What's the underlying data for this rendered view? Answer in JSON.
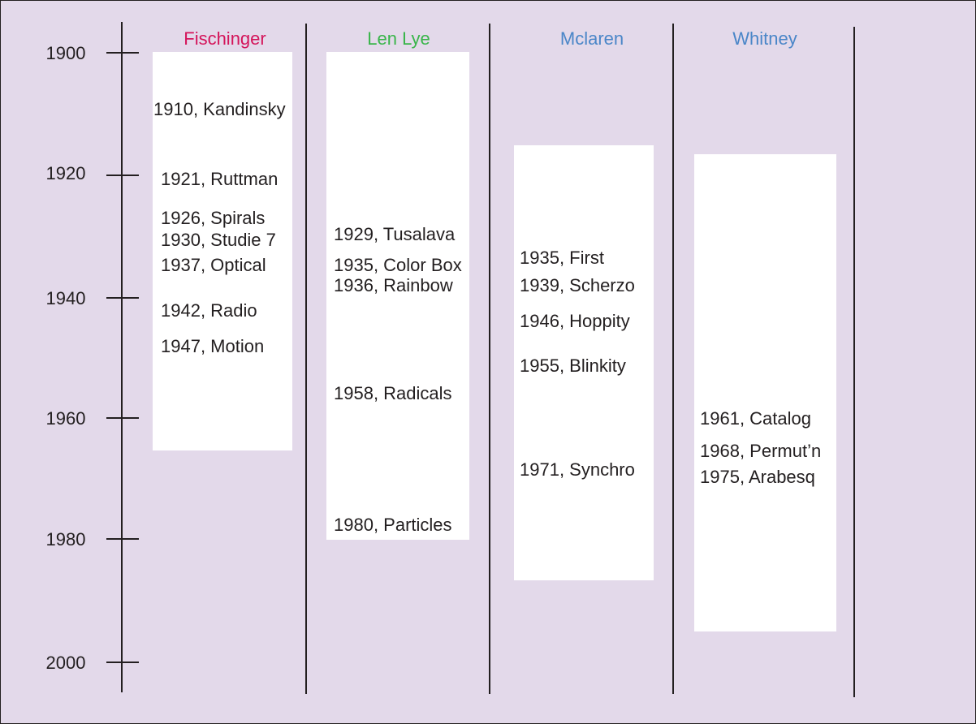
{
  "axis": {
    "years": [
      "1900",
      "1920",
      "1940",
      "1960",
      "1980",
      "2000"
    ]
  },
  "columns": [
    {
      "artist": "Fischinger",
      "color": "#d4145a",
      "works": [
        "1910, Kandinsky",
        "1921, Ruttman",
        "1926, Spirals",
        "1930, Studie 7",
        "1937, Optical",
        "1942, Radio",
        "1947, Motion"
      ]
    },
    {
      "artist": "Len Lye",
      "color": "#39b54a",
      "works": [
        "1929, Tusalava",
        "1935, Color Box",
        "1936, Rainbow",
        "1958, Radicals",
        "1980, Particles"
      ]
    },
    {
      "artist": "Mclaren",
      "color": "#4a86c8",
      "works": [
        "1935, First",
        "1939, Scherzo",
        "1946, Hoppity",
        "1955, Blinkity",
        "1971, Synchro"
      ]
    },
    {
      "artist": "Whitney",
      "color": "#4a86c8",
      "works": [
        "1961, Catalog",
        "1968, Permut’n",
        "1975, Arabesq"
      ]
    }
  ]
}
